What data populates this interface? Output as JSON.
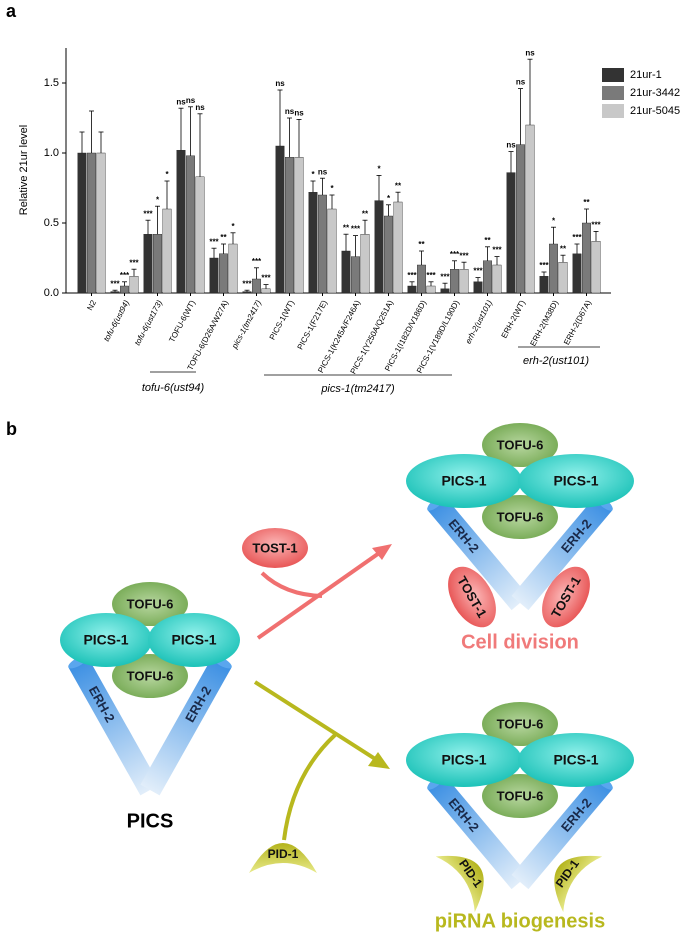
{
  "chart_data": {
    "type": "bar",
    "panel_label": "a",
    "ylabel": "Relative 21ur  level",
    "categories": [
      "N2",
      "tofu-6(ust94)",
      "tofu-6(ust173)",
      "TOFU-6(WT)",
      "TOFU-6(D26A/W27A)",
      "pics-1(tm2417)",
      "PICS-1(WT)",
      "PICS-1(F217E)",
      "PICS-1(K245A/F246A)",
      "PICS-1(Y250A/Q251A)",
      "PICS-1(I182D/V186D)",
      "PICS-1(V189D/L190D)",
      "erh-2(ust101)",
      "ERH-2(WT)",
      "ERH-2(M38D)",
      "ERH-2(D67A)"
    ],
    "series": [
      {
        "name": "21ur-1",
        "color": "#333333",
        "values": [
          1.0,
          0.01,
          0.42,
          1.02,
          0.25,
          0.01,
          1.05,
          0.72,
          0.3,
          0.66,
          0.05,
          0.03,
          0.08,
          0.86,
          0.12,
          0.28
        ],
        "errors": [
          0.15,
          0.01,
          0.1,
          0.3,
          0.07,
          0.01,
          0.4,
          0.08,
          0.12,
          0.18,
          0.03,
          0.04,
          0.03,
          0.15,
          0.03,
          0.07
        ],
        "significance": [
          null,
          "***",
          "***",
          "ns",
          "***",
          "***",
          "ns",
          "*",
          "**",
          "*",
          "***",
          "***",
          "***",
          "ns",
          "***",
          "***"
        ]
      },
      {
        "name": "21ur-3442",
        "color": "#7a7a7a",
        "values": [
          1.0,
          0.05,
          0.42,
          0.98,
          0.28,
          0.1,
          0.97,
          0.7,
          0.26,
          0.55,
          0.2,
          0.17,
          0.23,
          1.06,
          0.35,
          0.5
        ],
        "errors": [
          0.3,
          0.03,
          0.2,
          0.35,
          0.07,
          0.08,
          0.28,
          0.12,
          0.15,
          0.08,
          0.1,
          0.06,
          0.1,
          0.4,
          0.12,
          0.1
        ],
        "significance": [
          null,
          "***",
          "*",
          "ns",
          "**",
          "***",
          "ns",
          "ns",
          "***",
          "*",
          "**",
          "***",
          "**",
          "ns",
          "*",
          "**"
        ]
      },
      {
        "name": "21ur-5045",
        "color": "#c8c8c8",
        "values": [
          1.0,
          0.12,
          0.6,
          0.83,
          0.35,
          0.03,
          0.97,
          0.6,
          0.42,
          0.65,
          0.05,
          0.17,
          0.2,
          1.2,
          0.22,
          0.37
        ],
        "errors": [
          0.15,
          0.05,
          0.2,
          0.45,
          0.08,
          0.03,
          0.27,
          0.1,
          0.1,
          0.07,
          0.03,
          0.05,
          0.06,
          0.47,
          0.05,
          0.07
        ],
        "significance": [
          null,
          "***",
          "*",
          "ns",
          "*",
          "***",
          "ns",
          "*",
          "**",
          "**",
          "***",
          "***",
          "***",
          "ns",
          "**",
          "***"
        ]
      }
    ],
    "group_labels": [
      "tofu-6(ust94)",
      "pics-1(tm2417)",
      "erh-2(ust101)"
    ],
    "ylim": [
      0,
      1.75
    ],
    "yticks": [
      {
        "value": 0,
        "label": "0.0"
      },
      0.5,
      {
        "value": 1,
        "label": "1.0"
      },
      1.5
    ],
    "legend": "upper right"
  },
  "panel_b": {
    "label": "b",
    "pics": {
      "tofu_top": "TOFU-6",
      "pics_left": "PICS-1",
      "pics_right": "PICS-1",
      "tofu_bottom": "TOFU-6",
      "erh_left": "ERH-2",
      "erh_right": "ERH-2",
      "caption": "PICS"
    },
    "tost": "TOST-1",
    "pid": "PID-1",
    "cell_division": {
      "tofu_top": "TOFU-6",
      "pics_left": "PICS-1",
      "pics_right": "PICS-1",
      "tofu_bottom": "TOFU-6",
      "erh_left": "ERH-2",
      "erh_right": "ERH-2",
      "partner_left": "TOST-1",
      "partner_right": "TOST-1",
      "caption": "Cell division"
    },
    "pirna": {
      "tofu_top": "TOFU-6",
      "pics_left": "PICS-1",
      "pics_right": "PICS-1",
      "tofu_bottom": "TOFU-6",
      "erh_left": "ERH-2",
      "erh_right": "ERH-2",
      "partner_left": "PID-1",
      "partner_right": "PID-1",
      "caption": "piRNA biogenesis"
    }
  }
}
